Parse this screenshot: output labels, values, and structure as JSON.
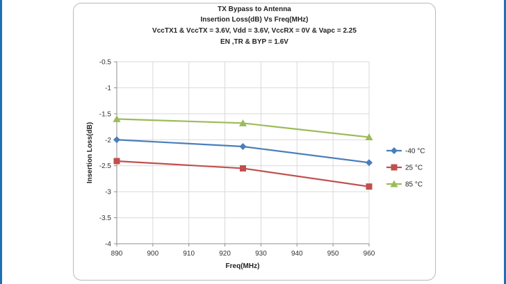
{
  "chart_data": {
    "type": "line",
    "title_lines": [
      "TX Bypass to Antenna",
      "Insertion Loss(dB) Vs Freq(MHz)",
      "VccTX1 & VccTX = 3.6V, Vdd = 3.6V, VccRX  = 0V & Vapc = 2.25",
      "EN ,TR & BYP = 1.6V"
    ],
    "xlabel": "Freq(MHz)",
    "ylabel": "Insertion Loss(dB)",
    "xlim": [
      890,
      960
    ],
    "ylim": [
      -4,
      -0.5
    ],
    "x_ticks": [
      "890",
      "900",
      "910",
      "920",
      "930",
      "940",
      "950",
      "960"
    ],
    "y_ticks": [
      "-0.5",
      "-1",
      "-1.5",
      "-2",
      "-2.5",
      "-3",
      "-3.5",
      "-4"
    ],
    "grid": true,
    "legend_position": "right",
    "x": [
      890,
      925,
      960
    ],
    "series": [
      {
        "name": "-40 °C",
        "values": [
          -2.0,
          -2.13,
          -2.44
        ],
        "color": "#4a7ebb",
        "marker": "diamond"
      },
      {
        "name": "25 °C",
        "values": [
          -2.41,
          -2.55,
          -2.9
        ],
        "color": "#c0504d",
        "marker": "square"
      },
      {
        "name": "85 °C",
        "values": [
          -1.6,
          -1.68,
          -1.95
        ],
        "color": "#9bbb59",
        "marker": "triangle"
      }
    ]
  }
}
